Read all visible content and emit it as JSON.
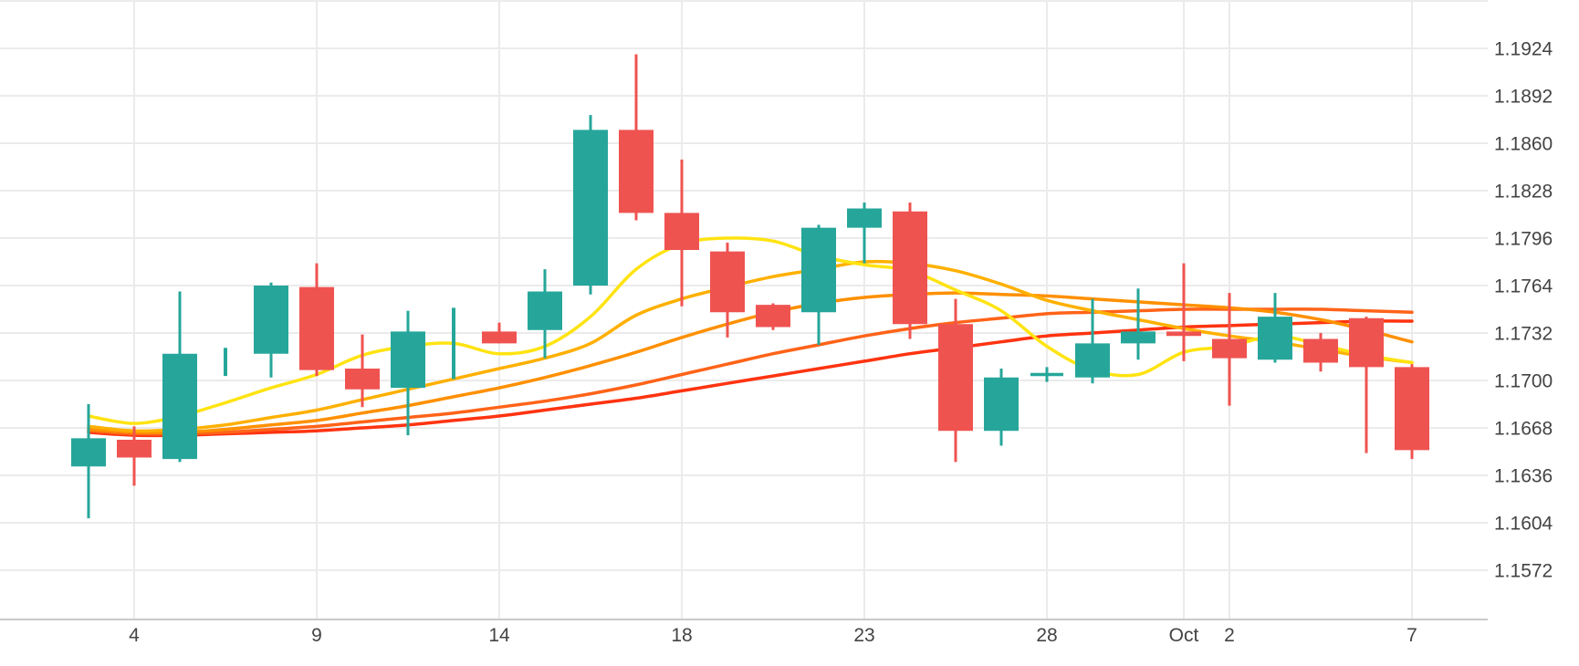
{
  "figure": {
    "background": "#ffffff",
    "grid_line_color": "#ebebeb",
    "axis_line_color": "#c9c9c9",
    "text_color": "#444444"
  },
  "chart_data": {
    "type": "candlestick",
    "title": "",
    "x_axis": {
      "gridlines": true,
      "labels": [
        {
          "label": "4",
          "candle_index": 1
        },
        {
          "label": "9",
          "candle_index": 5
        },
        {
          "label": "14",
          "candle_index": 9
        },
        {
          "label": "18",
          "candle_index": 13
        },
        {
          "label": "23",
          "candle_index": 17
        },
        {
          "label": "28",
          "candle_index": 21
        },
        {
          "label": "Oct",
          "candle_index": 24
        },
        {
          "label": "2",
          "candle_index": 25
        },
        {
          "label": "7",
          "candle_index": 29
        }
      ]
    },
    "y_axis": {
      "side": "right",
      "decimals": 4,
      "ticks": [
        1.1924,
        1.1892,
        1.186,
        1.1828,
        1.1796,
        1.1764,
        1.1732,
        1.17,
        1.1668,
        1.1636,
        1.1604,
        1.1572
      ]
    },
    "candles": {
      "up_color": "#26A69A",
      "down_color": "#EF5350",
      "data": [
        {
          "o": 1.1642,
          "h": 1.1684,
          "l": 1.1607,
          "c": 1.1661,
          "style": "normal"
        },
        {
          "o": 1.166,
          "h": 1.1669,
          "l": 1.1629,
          "c": 1.1648,
          "style": "normal"
        },
        {
          "o": 1.1647,
          "h": 1.176,
          "l": 1.1645,
          "c": 1.1718,
          "style": "normal"
        },
        {
          "o": 1.171,
          "h": 1.1722,
          "l": 1.1703,
          "c": 1.1712,
          "style": "thin"
        },
        {
          "o": 1.1718,
          "h": 1.1766,
          "l": 1.1702,
          "c": 1.1764,
          "style": "normal"
        },
        {
          "o": 1.1763,
          "h": 1.1779,
          "l": 1.1703,
          "c": 1.1707,
          "style": "normal"
        },
        {
          "o": 1.1708,
          "h": 1.1731,
          "l": 1.1682,
          "c": 1.1694,
          "style": "normal"
        },
        {
          "o": 1.1695,
          "h": 1.1747,
          "l": 1.1663,
          "c": 1.1733,
          "style": "normal"
        },
        {
          "o": 1.1723,
          "h": 1.1749,
          "l": 1.1701,
          "c": 1.1725,
          "style": "thin"
        },
        {
          "o": 1.1733,
          "h": 1.1739,
          "l": 1.1725,
          "c": 1.1725,
          "style": "normal"
        },
        {
          "o": 1.1734,
          "h": 1.1775,
          "l": 1.1715,
          "c": 1.176,
          "style": "normal"
        },
        {
          "o": 1.1764,
          "h": 1.1879,
          "l": 1.1758,
          "c": 1.1869,
          "style": "normal"
        },
        {
          "o": 1.1869,
          "h": 1.192,
          "l": 1.1808,
          "c": 1.1813,
          "style": "normal"
        },
        {
          "o": 1.1813,
          "h": 1.1849,
          "l": 1.175,
          "c": 1.1788,
          "style": "normal"
        },
        {
          "o": 1.1787,
          "h": 1.1793,
          "l": 1.1729,
          "c": 1.1746,
          "style": "normal"
        },
        {
          "o": 1.1751,
          "h": 1.1752,
          "l": 1.1734,
          "c": 1.1736,
          "style": "normal"
        },
        {
          "o": 1.1746,
          "h": 1.1805,
          "l": 1.1724,
          "c": 1.1803,
          "style": "normal"
        },
        {
          "o": 1.1803,
          "h": 1.182,
          "l": 1.1779,
          "c": 1.1816,
          "style": "normal"
        },
        {
          "o": 1.1814,
          "h": 1.182,
          "l": 1.1728,
          "c": 1.1738,
          "style": "normal"
        },
        {
          "o": 1.1738,
          "h": 1.1755,
          "l": 1.1645,
          "c": 1.1666,
          "style": "normal"
        },
        {
          "o": 1.1666,
          "h": 1.1708,
          "l": 1.1656,
          "c": 1.1702,
          "style": "normal"
        },
        {
          "o": 1.1704,
          "h": 1.1709,
          "l": 1.1699,
          "c": 1.1704,
          "style": "doji"
        },
        {
          "o": 1.1702,
          "h": 1.1755,
          "l": 1.1698,
          "c": 1.1725,
          "style": "normal"
        },
        {
          "o": 1.1725,
          "h": 1.1762,
          "l": 1.1714,
          "c": 1.1733,
          "style": "normal"
        },
        {
          "o": 1.1733,
          "h": 1.1779,
          "l": 1.1713,
          "c": 1.173,
          "style": "normal"
        },
        {
          "o": 1.1728,
          "h": 1.1759,
          "l": 1.1683,
          "c": 1.1715,
          "style": "normal"
        },
        {
          "o": 1.1714,
          "h": 1.1759,
          "l": 1.1712,
          "c": 1.1743,
          "style": "normal"
        },
        {
          "o": 1.1728,
          "h": 1.1732,
          "l": 1.1706,
          "c": 1.1712,
          "style": "normal"
        },
        {
          "o": 1.1742,
          "h": 1.1743,
          "l": 1.1651,
          "c": 1.1709,
          "style": "normal"
        },
        {
          "o": 1.1709,
          "h": 1.1711,
          "l": 1.1647,
          "c": 1.1653,
          "style": "normal"
        }
      ]
    },
    "overlays": [
      {
        "name": "ma-red",
        "color": "#FF3310",
        "values": [
          1.1665,
          1.1663,
          1.1663,
          1.1664,
          1.1665,
          1.1666,
          1.1668,
          1.167,
          1.1673,
          1.1676,
          1.168,
          1.1684,
          1.1688,
          1.1693,
          1.1698,
          1.1703,
          1.1708,
          1.1713,
          1.1718,
          1.1722,
          1.1726,
          1.173,
          1.1732,
          1.1734,
          1.1736,
          1.1737,
          1.1738,
          1.1739,
          1.174,
          1.174
        ]
      },
      {
        "name": "ma-deep-orange",
        "color": "#FF6318",
        "values": [
          1.1666,
          1.1664,
          1.1664,
          1.1665,
          1.1667,
          1.1669,
          1.1672,
          1.1675,
          1.1678,
          1.1682,
          1.1686,
          1.1691,
          1.1697,
          1.1704,
          1.1711,
          1.1718,
          1.1724,
          1.173,
          1.1735,
          1.1739,
          1.1742,
          1.1745,
          1.1746,
          1.1747,
          1.1748,
          1.1748,
          1.1748,
          1.1748,
          1.1747,
          1.1746
        ]
      },
      {
        "name": "ma-orange",
        "color": "#FF9000",
        "values": [
          1.1667,
          1.1665,
          1.1665,
          1.1667,
          1.167,
          1.1673,
          1.1678,
          1.1683,
          1.1689,
          1.1695,
          1.1702,
          1.171,
          1.1719,
          1.1729,
          1.1738,
          1.1746,
          1.1752,
          1.1756,
          1.1758,
          1.1759,
          1.1758,
          1.1757,
          1.1755,
          1.1753,
          1.1751,
          1.1749,
          1.1746,
          1.1741,
          1.1734,
          1.1726
        ]
      },
      {
        "name": "ma-amber",
        "color": "#FFB000",
        "values": [
          1.1669,
          1.1666,
          1.1667,
          1.167,
          1.1675,
          1.168,
          1.1687,
          1.1694,
          1.1701,
          1.1708,
          1.1715,
          1.1725,
          1.1744,
          1.1755,
          1.1763,
          1.177,
          1.1775,
          1.178,
          1.1779,
          1.1774,
          1.1765,
          1.1754,
          1.1747,
          1.1741,
          1.1735,
          1.173,
          1.1726,
          1.1721,
          1.1716,
          1.1712
        ]
      },
      {
        "name": "ma-yellow",
        "color": "#FFE312",
        "values": [
          1.1676,
          1.1671,
          1.1676,
          1.1685,
          1.1695,
          1.1704,
          1.1717,
          1.1723,
          1.1725,
          1.1718,
          1.1723,
          1.1743,
          1.1775,
          1.1792,
          1.1796,
          1.1794,
          1.1784,
          1.1778,
          1.1774,
          1.1761,
          1.1747,
          1.1723,
          1.1707,
          1.1704,
          1.1719,
          1.1723,
          1.173,
          1.1724,
          1.1717,
          1.1712
        ]
      }
    ]
  }
}
